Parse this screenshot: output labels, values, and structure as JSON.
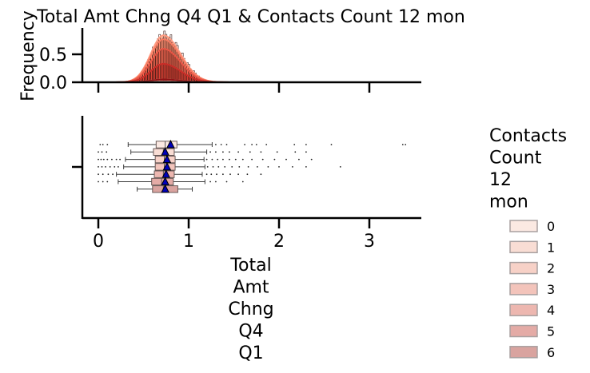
{
  "chart_data": {
    "type": "histogram+boxplot",
    "title": "Total Amt Chng Q4 Q1 & Contacts Count 12 mon",
    "x_variable": "Total Amt Chng Q4 Q1",
    "xlabel_lines": [
      "Total",
      "Amt",
      "Chng",
      "Q4",
      "Q1"
    ],
    "xlim": [
      -0.19,
      3.58
    ],
    "x_ticks": [
      0,
      1,
      2,
      3
    ],
    "x_tick_labels": [
      "0",
      "1",
      "2",
      "3"
    ],
    "top_panel": {
      "kind": "histogram with KDE",
      "ylabel": "Frequency",
      "ylim": [
        0,
        0.95
      ],
      "y_ticks": [
        0.0,
        0.5
      ],
      "y_tick_labels": [
        "0.0",
        "0.5"
      ],
      "kde_peak_by_group": [
        {
          "group": "0",
          "peak": 0.01
        },
        {
          "group": "1",
          "peak": 0.05
        },
        {
          "group": "2",
          "peak": 0.84
        },
        {
          "group": "3",
          "peak": 0.77
        },
        {
          "group": "4",
          "peak": 0.6
        },
        {
          "group": "5",
          "peak": 0.33
        },
        {
          "group": "6",
          "peak": 0.05
        }
      ],
      "kde_mode_x": 0.72
    },
    "bottom_panel": {
      "kind": "horizontal boxplot by group with mean markers",
      "groups": [
        {
          "name": "0",
          "whisker_low": 0.33,
          "q1": 0.64,
          "median": 0.74,
          "q3": 0.87,
          "whisker_high": 1.26,
          "mean": 0.8,
          "outliers": [
            0.02,
            0.05,
            0.1,
            1.3,
            1.36,
            1.42,
            1.62,
            1.7,
            1.75,
            1.86,
            2.17,
            2.3,
            2.58,
            3.37,
            3.4
          ]
        },
        {
          "name": "1",
          "whisker_low": 0.36,
          "q1": 0.61,
          "median": 0.72,
          "q3": 0.84,
          "whisker_high": 1.2,
          "mean": 0.74,
          "outliers": [
            0.0,
            0.04,
            0.09,
            1.24,
            1.3,
            1.38,
            1.45,
            1.55,
            1.68,
            1.8,
            1.98,
            2.18,
            2.3
          ]
        },
        {
          "name": "2",
          "whisker_low": 0.3,
          "q1": 0.63,
          "median": 0.73,
          "q3": 0.85,
          "whisker_high": 1.17,
          "mean": 0.76,
          "outliers": [
            0.0,
            0.03,
            0.06,
            0.1,
            0.15,
            0.2,
            0.24,
            1.2,
            1.26,
            1.32,
            1.38,
            1.45,
            1.52,
            1.6,
            1.7,
            1.82,
            1.95,
            2.08,
            2.22,
            2.36
          ]
        },
        {
          "name": "3",
          "whisker_low": 0.28,
          "q1": 0.63,
          "median": 0.73,
          "q3": 0.85,
          "whisker_high": 1.18,
          "mean": 0.76,
          "outliers": [
            0.0,
            0.04,
            0.08,
            0.13,
            0.18,
            0.22,
            1.21,
            1.27,
            1.33,
            1.4,
            1.48,
            1.56,
            1.66,
            1.76,
            1.88,
            2.0,
            2.15,
            2.3,
            2.68
          ]
        },
        {
          "name": "4",
          "whisker_low": 0.2,
          "q1": 0.62,
          "median": 0.72,
          "q3": 0.84,
          "whisker_high": 1.15,
          "mean": 0.75,
          "outliers": [
            0.0,
            0.05,
            0.11,
            0.16,
            1.2,
            1.25,
            1.31,
            1.38,
            1.46,
            1.55,
            1.65,
            1.8
          ]
        },
        {
          "name": "5",
          "whisker_low": 0.22,
          "q1": 0.59,
          "median": 0.7,
          "q3": 0.83,
          "whisker_high": 1.18,
          "mean": 0.74,
          "outliers": [
            0.0,
            0.05,
            0.1,
            1.24,
            1.3,
            1.42,
            1.6
          ]
        },
        {
          "name": "6",
          "whisker_low": 0.43,
          "q1": 0.6,
          "median": 0.72,
          "q3": 0.88,
          "whisker_high": 1.04,
          "mean": 0.74,
          "outliers": []
        }
      ]
    },
    "legend": {
      "title_lines": [
        "Contacts",
        "Count",
        "12",
        "mon"
      ],
      "entries": [
        "0",
        "1",
        "2",
        "3",
        "4",
        "5",
        "6"
      ],
      "colors": [
        "#fbe9e2",
        "#f9ddd4",
        "#f7d1c7",
        "#f3c4bb",
        "#edb7b0",
        "#e4aba6",
        "#d9a39f"
      ],
      "placement": "right"
    }
  }
}
